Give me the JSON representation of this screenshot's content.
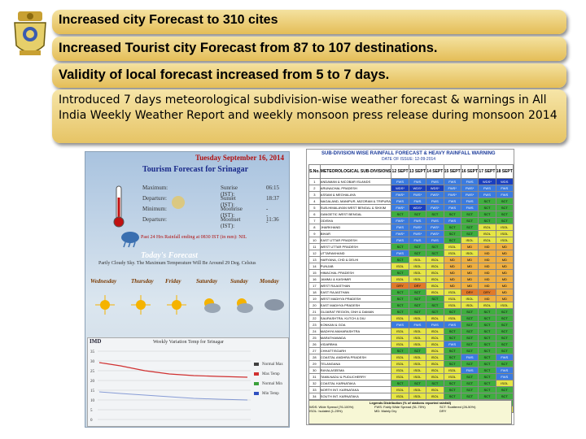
{
  "headlines": [
    "Increased city Forecast  to 310 cites",
    "Increased Tourist city Forecast  from 87 to 107 destinations.",
    "Validity of local forecast increased  from  5 to 7 days.",
    "Introduced 7 days meteorological subdivision-wise weather forecast & warnings in All India Weekly Weather Report and weekly monsoon press release during monsoon 2014"
  ],
  "tourist": {
    "date": "Tuesday September 16, 2014",
    "title": "Tourism Forecast for Srinagar",
    "left_labels": [
      "Maximum:",
      "Departure:",
      "Minimum:",
      "Departure:"
    ],
    "right_labels": [
      "Sunrise (IST):",
      "Sunset (IST):",
      "Moonrise (IST):",
      "Moonset (IST):"
    ],
    "right_values": [
      "06:15",
      "18:37",
      "---",
      "11:36"
    ],
    "rain_text": "Past 24 Hrs Rainfall ending at 0830 IST (in mm): NIL",
    "forecast_title": "Today's Forecast",
    "forecast_text": "Partly Cloudy Sky. The Maximum Temperature Will Be Around 29 Deg. Celsius",
    "days": [
      "Wednesday",
      "Thursday",
      "Friday",
      "Saturday",
      "Sunday",
      "Monday"
    ],
    "graph_title": "Weekly Variation Temp for Srinagar",
    "graph_logo": "IMD",
    "legend": [
      "Normal Max",
      "Max Temp",
      "Normal Min",
      "Min Temp"
    ],
    "y_ticks": [
      "35",
      "30",
      "25",
      "20",
      "15",
      "10",
      "5",
      "0"
    ]
  },
  "table": {
    "title": "SUB-DIVISION WISE RAINFALL FORECAST & HEAVY RAINFALL WARNING",
    "subtitle": "DATE OF ISSUE: 12-09-2014",
    "col_sno": "S.No.",
    "col_name": "METEOROLOGICAL SUB-DIVISIONS",
    "dates": [
      "12 SEPT",
      "13 SEPT",
      "14 SEPT",
      "15 SEPT",
      "16 SEPT",
      "17 SEPT",
      "18 SEPT"
    ],
    "rows": [
      [
        "1",
        "ANDAMAN & NICOBAR ISLANDS",
        "FWS",
        "FWS",
        "FWS",
        "FWS",
        "FWS",
        "WDS*",
        "WDS"
      ],
      [
        "2",
        "ARUNACHAL PRADESH",
        "WDS*",
        "WDS*",
        "WDS*",
        "FWS*",
        "FWS*",
        "FWS",
        "FWS"
      ],
      [
        "3",
        "ASSAM & MEGHALAYA",
        "FWS*",
        "FWS*",
        "FWS*",
        "FWS*",
        "FWS*",
        "FWS",
        "FWS"
      ],
      [
        "4",
        "NAGALAND, MANIPUR, MIZORAM & TRIPURA",
        "FWS",
        "FWS",
        "FWS",
        "FWS",
        "FWS",
        "SCT",
        "SCT"
      ],
      [
        "5",
        "SUB-HIMALAYAN WEST BENGAL & SIKKIM",
        "FWS*",
        "WDS*",
        "FWS*",
        "FWS",
        "FWS",
        "SCT",
        "SCT"
      ],
      [
        "6",
        "GANGETIC WEST BENGAL",
        "SCT",
        "SCT",
        "SCT",
        "SCT",
        "SCT",
        "SCT",
        "SCT"
      ],
      [
        "7",
        "ODISHA",
        "FWS*",
        "FWS",
        "FWS",
        "FWS",
        "SCT",
        "SCT",
        "SCT"
      ],
      [
        "8",
        "JHARKHAND",
        "FWS",
        "FWS*",
        "FWS*",
        "SCT",
        "SCT",
        "ISOL",
        "ISOL"
      ],
      [
        "9",
        "BIHAR",
        "FWS*",
        "FWS*",
        "FWS*",
        "SCT",
        "SCT",
        "ISOL",
        "ISOL"
      ],
      [
        "10",
        "EAST UTTAR PRADESH",
        "FWS",
        "FWS",
        "FWS",
        "SCT",
        "ISOL",
        "ISOL",
        "ISOL"
      ],
      [
        "11",
        "WEST UTTAR PRADESH",
        "SCT",
        "SCT",
        "SCT",
        "ISOL",
        "MD",
        "MD",
        "MD"
      ],
      [
        "12",
        "UTTARAKHAND",
        "FWS",
        "SCT",
        "SCT",
        "ISOL",
        "ISOL",
        "MD",
        "MD"
      ],
      [
        "13",
        "HARYANA, CHD & DELHI",
        "SCT",
        "ISOL",
        "ISOL",
        "MD",
        "MD",
        "MD",
        "MD"
      ],
      [
        "14",
        "PUNJAB",
        "ISOL",
        "ISOL",
        "ISOL",
        "MD",
        "MD",
        "MD",
        "MD"
      ],
      [
        "15",
        "HIMACHAL PRADESH",
        "SCT",
        "ISOL",
        "ISOL",
        "MD",
        "MD",
        "MD",
        "MD"
      ],
      [
        "16",
        "JAMMU & KASHMIR",
        "ISOL",
        "ISOL",
        "ISOL",
        "MD",
        "MD",
        "MD",
        "MD"
      ],
      [
        "17",
        "WEST RAJASTHAN",
        "DRY",
        "DRY",
        "ISOL",
        "MD",
        "MD",
        "MD",
        "MD"
      ],
      [
        "18",
        "EAST RAJASTHAN",
        "SCT",
        "SCT",
        "ISOL",
        "ISOL",
        "DRY",
        "DRY",
        "MD"
      ],
      [
        "19",
        "WEST MADHYA PRADESH",
        "SCT",
        "SCT",
        "SCT",
        "ISOL",
        "ISOL",
        "MD",
        "MD"
      ],
      [
        "20",
        "EAST MADHYA PRADESH",
        "SCT",
        "SCT",
        "SCT",
        "ISOL",
        "ISOL",
        "ISOL",
        "ISOL"
      ],
      [
        "21",
        "GUJARAT REGION, DNH & DAMAN",
        "SCT",
        "SCT",
        "SCT",
        "SCT",
        "SCT",
        "SCT",
        "SCT"
      ],
      [
        "22",
        "SAURASHTRA, KUTCH & DIU",
        "ISOL",
        "ISOL",
        "ISOL",
        "ISOL",
        "SCT",
        "SCT",
        "SCT"
      ],
      [
        "23",
        "KONKAN & GOA",
        "FWS",
        "FWS",
        "FWS",
        "FWS",
        "SCT",
        "SCT",
        "SCT"
      ],
      [
        "24",
        "MADHYA MAHARASHTRA",
        "ISOL",
        "ISOL",
        "ISOL",
        "SCT",
        "SCT",
        "SCT",
        "SCT"
      ],
      [
        "25",
        "MARATHAWADA",
        "ISOL",
        "ISOL",
        "ISOL",
        "SCT",
        "SCT",
        "SCT",
        "SCT"
      ],
      [
        "26",
        "VIDARBHA",
        "ISOL",
        "ISOL",
        "ISOL",
        "FWS",
        "SCT",
        "SCT",
        "SCT"
      ],
      [
        "27",
        "CHHATTISGARH",
        "SCT",
        "SCT",
        "ISOL",
        "SCT",
        "SCT",
        "SCT",
        "SCT"
      ],
      [
        "28",
        "COASTAL ANDHRA PRADESH",
        "ISOL",
        "ISOL",
        "ISOL",
        "SCT",
        "FWS",
        "SCT",
        "FWS"
      ],
      [
        "29",
        "TELANGANA",
        "ISOL",
        "ISOL",
        "ISOL",
        "SCT",
        "SCT",
        "SCT",
        "SCT"
      ],
      [
        "30",
        "RAYALASEEMA",
        "ISOL",
        "ISOL",
        "ISOL",
        "ISOL",
        "FWS",
        "SCT",
        "FWS"
      ],
      [
        "31",
        "TAMILNADU & PUDUCHERRY",
        "ISOL",
        "ISOL",
        "ISOL",
        "ISOL",
        "SCT",
        "SCT",
        "FWS"
      ],
      [
        "32",
        "COASTAL KARNATAKA",
        "SCT",
        "SCT",
        "SCT",
        "SCT",
        "SCT",
        "SCT",
        "ISOL"
      ],
      [
        "33",
        "NORTH INT. KARNATAKA",
        "ISOL",
        "ISOL",
        "ISOL",
        "SCT",
        "SCT",
        "SCT",
        "SCT"
      ],
      [
        "34",
        "SOUTH INT. KARNATAKA",
        "ISOL",
        "ISOL",
        "ISOL",
        "SCT",
        "SCT",
        "SCT",
        "SCT"
      ],
      [
        "35",
        "KERALA",
        "SCT",
        "SCT",
        "SCT",
        "SCT",
        "SCT",
        "SCT",
        "SCT"
      ],
      [
        "36",
        "LAKSHADWEEP",
        "ISOL",
        "ISOL",
        "ISOL",
        "ISOL",
        "SCT",
        "ISOL",
        "ISOL"
      ]
    ],
    "footer_title": "Legends Distribution (% of stations reported rainfall)",
    "footer_items": [
      "WDS: Wide Spread (76-100%)",
      "FWS: Fairly Wide Spread (51-75%)",
      "SCT: Scattered (26-50%)",
      "ISOL: Isolated (1-25%)",
      "MD: Mainly Dry",
      "DRY"
    ]
  },
  "colors": {
    "band_top": "#f4e2a0",
    "band_bottom": "#e4bd57",
    "WDS": "#1a3fbf",
    "FWS": "#3a7be0",
    "SCT": "#3fae3f",
    "ISOL": "#e6e645",
    "MD": "#f0b040",
    "DRY": "#e07a2a"
  }
}
